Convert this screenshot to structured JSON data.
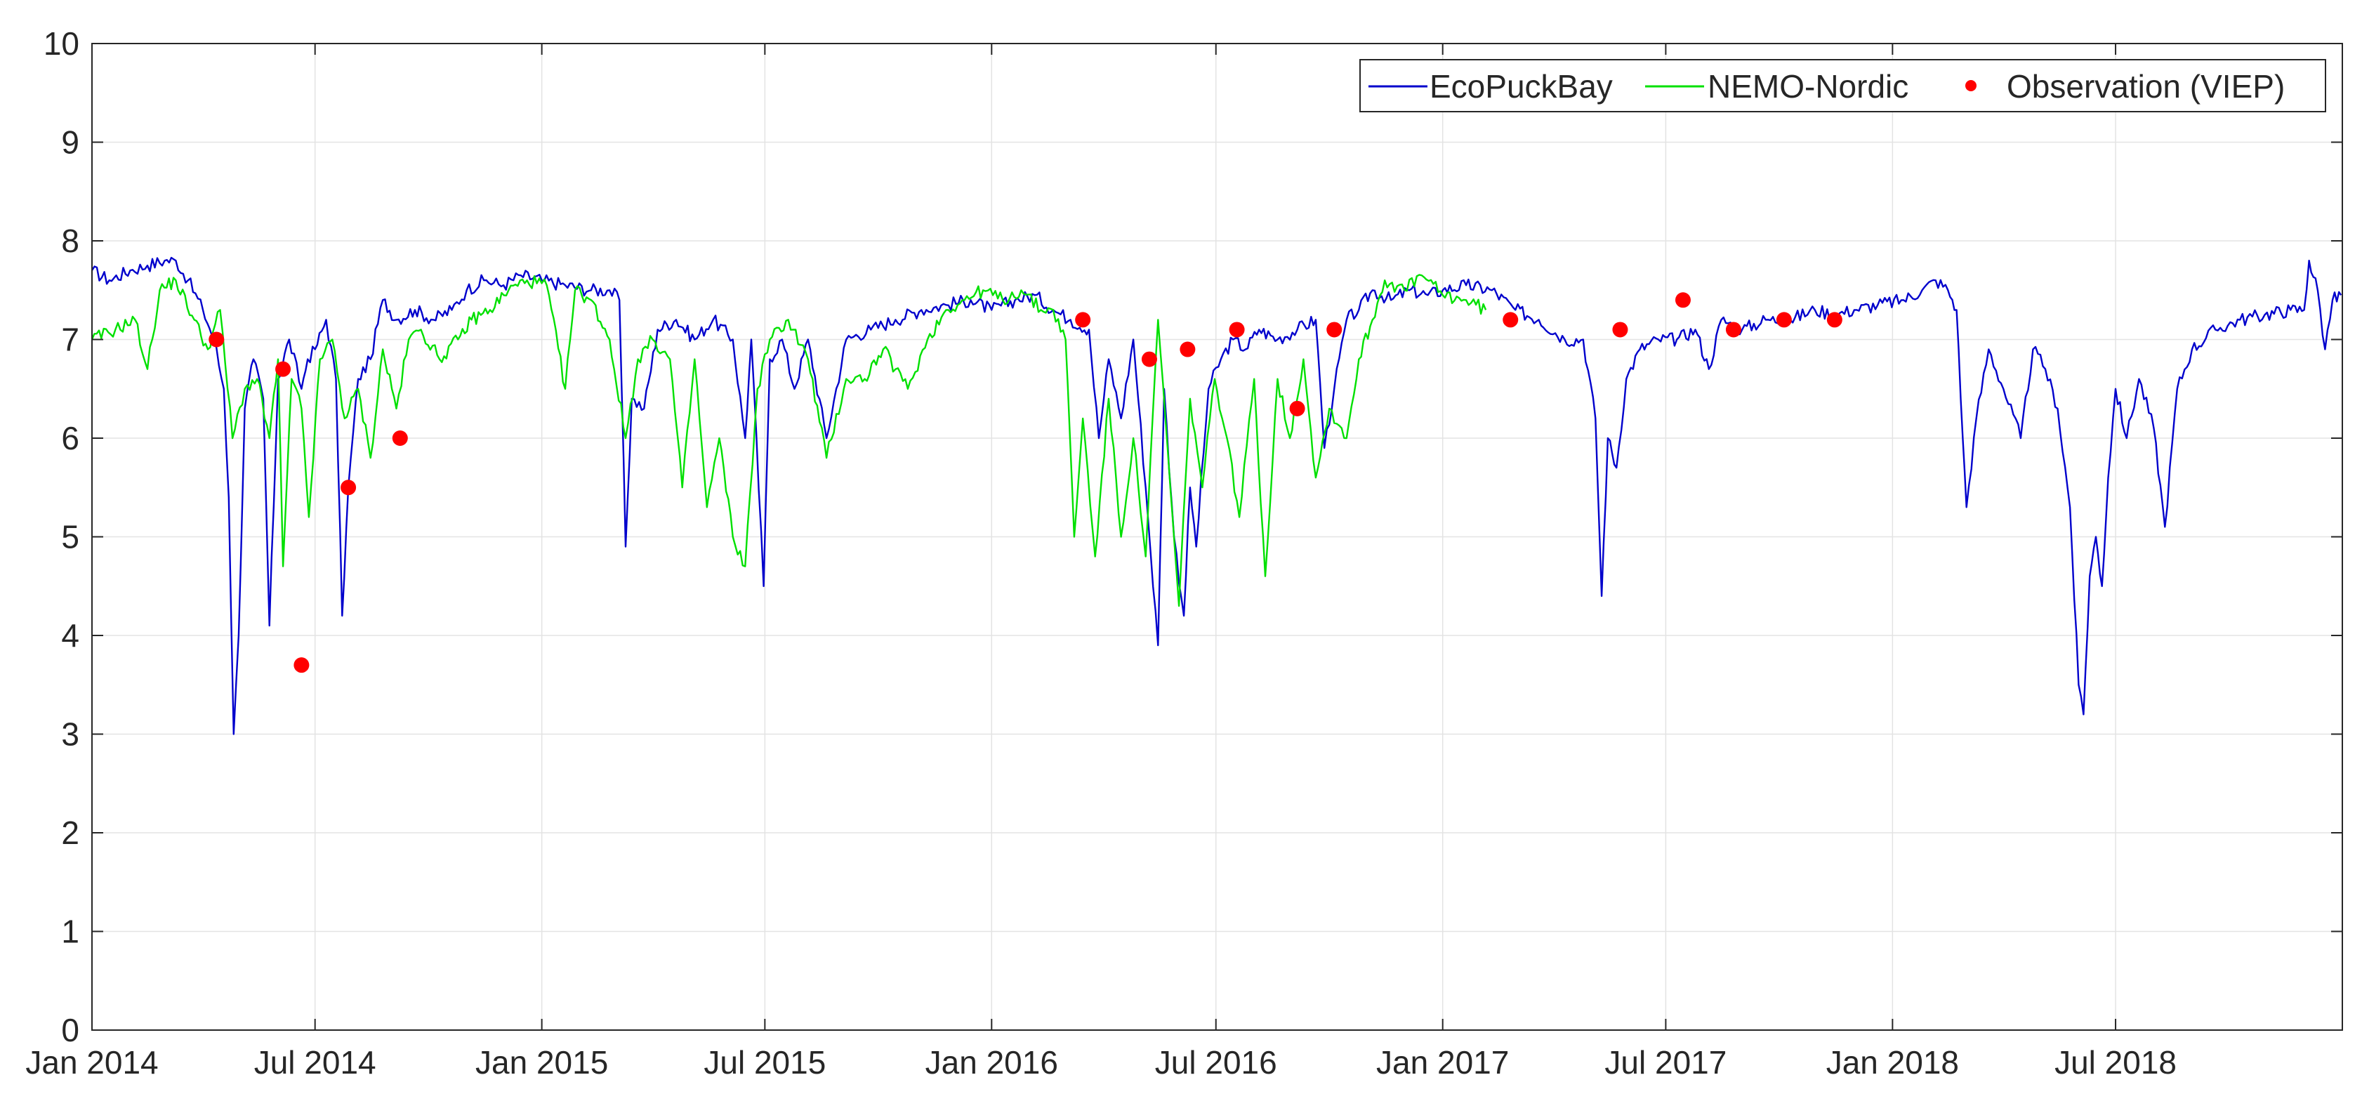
{
  "chart_data": {
    "type": "line",
    "title": "",
    "xlabel": "",
    "ylabel": "",
    "xlim": [
      "2014-01-01",
      "2019-01-01"
    ],
    "ylim": [
      0,
      10
    ],
    "grid": true,
    "legend_position": "top-right",
    "x_tick_labels": [
      "Jan 2014",
      "Jul 2014",
      "Jan 2015",
      "Jul 2015",
      "Jan 2016",
      "Jul 2016",
      "Jan 2017",
      "Jul 2017",
      "Jan 2018",
      "Jul 2018"
    ],
    "x_tick_dates": [
      "2014-01-01",
      "2014-07-01",
      "2015-01-01",
      "2015-07-01",
      "2016-01-01",
      "2016-07-01",
      "2017-01-01",
      "2017-07-01",
      "2018-01-01",
      "2018-07-01"
    ],
    "y_tick_labels": [
      "0",
      "1",
      "2",
      "3",
      "4",
      "5",
      "6",
      "7",
      "8",
      "9",
      "10"
    ],
    "series": [
      {
        "name": "EcoPuckBay",
        "type": "line",
        "color": "#0000cc",
        "points": [
          [
            "2014-01-01",
            7.7
          ],
          [
            "2014-01-15",
            7.6
          ],
          [
            "2014-02-01",
            7.7
          ],
          [
            "2014-02-15",
            7.75
          ],
          [
            "2014-03-01",
            7.8
          ],
          [
            "2014-03-10",
            7.8
          ],
          [
            "2014-03-20",
            7.6
          ],
          [
            "2014-04-01",
            7.3
          ],
          [
            "2014-04-10",
            7.0
          ],
          [
            "2014-04-18",
            6.5
          ],
          [
            "2014-04-22",
            5.4
          ],
          [
            "2014-04-26",
            3.0
          ],
          [
            "2014-04-30",
            4.0
          ],
          [
            "2014-05-05",
            6.3
          ],
          [
            "2014-05-12",
            6.8
          ],
          [
            "2014-05-20",
            6.4
          ],
          [
            "2014-05-25",
            4.1
          ],
          [
            "2014-06-01",
            6.6
          ],
          [
            "2014-06-10",
            7.0
          ],
          [
            "2014-06-20",
            6.5
          ],
          [
            "2014-06-25",
            6.8
          ],
          [
            "2014-07-01",
            6.9
          ],
          [
            "2014-07-10",
            7.2
          ],
          [
            "2014-07-18",
            6.6
          ],
          [
            "2014-07-23",
            4.2
          ],
          [
            "2014-07-28",
            5.5
          ],
          [
            "2014-08-05",
            6.6
          ],
          [
            "2014-08-15",
            6.8
          ],
          [
            "2014-08-25",
            7.4
          ],
          [
            "2014-09-05",
            7.2
          ],
          [
            "2014-09-20",
            7.3
          ],
          [
            "2014-10-05",
            7.2
          ],
          [
            "2014-10-20",
            7.3
          ],
          [
            "2014-11-01",
            7.5
          ],
          [
            "2014-11-15",
            7.6
          ],
          [
            "2014-12-01",
            7.55
          ],
          [
            "2014-12-15",
            7.65
          ],
          [
            "2015-01-01",
            7.6
          ],
          [
            "2015-01-20",
            7.55
          ],
          [
            "2015-02-10",
            7.5
          ],
          [
            "2015-02-25",
            7.5
          ],
          [
            "2015-03-05",
            7.4
          ],
          [
            "2015-03-10",
            4.9
          ],
          [
            "2015-03-15",
            6.4
          ],
          [
            "2015-03-25",
            6.3
          ],
          [
            "2015-04-05",
            7.1
          ],
          [
            "2015-04-20",
            7.2
          ],
          [
            "2015-05-05",
            7.0
          ],
          [
            "2015-05-20",
            7.2
          ],
          [
            "2015-06-05",
            7.0
          ],
          [
            "2015-06-15",
            6.0
          ],
          [
            "2015-06-20",
            7.0
          ],
          [
            "2015-06-30",
            4.5
          ],
          [
            "2015-07-05",
            6.8
          ],
          [
            "2015-07-15",
            7.0
          ],
          [
            "2015-07-25",
            6.5
          ],
          [
            "2015-08-05",
            7.0
          ],
          [
            "2015-08-20",
            6.0
          ],
          [
            "2015-09-05",
            7.0
          ],
          [
            "2015-09-25",
            7.1
          ],
          [
            "2015-10-15",
            7.2
          ],
          [
            "2015-11-05",
            7.3
          ],
          [
            "2015-11-25",
            7.35
          ],
          [
            "2015-12-15",
            7.4
          ],
          [
            "2016-01-01",
            7.3
          ],
          [
            "2016-01-20",
            7.4
          ],
          [
            "2016-02-05",
            7.45
          ],
          [
            "2016-02-20",
            7.3
          ],
          [
            "2016-03-05",
            7.2
          ],
          [
            "2016-03-20",
            7.1
          ],
          [
            "2016-03-28",
            6.0
          ],
          [
            "2016-04-05",
            6.8
          ],
          [
            "2016-04-15",
            6.2
          ],
          [
            "2016-04-25",
            7.0
          ],
          [
            "2016-05-05",
            5.5
          ],
          [
            "2016-05-15",
            3.9
          ],
          [
            "2016-05-20",
            6.5
          ],
          [
            "2016-05-28",
            5.0
          ],
          [
            "2016-06-05",
            4.2
          ],
          [
            "2016-06-10",
            5.5
          ],
          [
            "2016-06-15",
            4.9
          ],
          [
            "2016-06-25",
            6.5
          ],
          [
            "2016-07-05",
            6.8
          ],
          [
            "2016-07-15",
            7.0
          ],
          [
            "2016-07-25",
            6.9
          ],
          [
            "2016-08-05",
            7.1
          ],
          [
            "2016-08-20",
            7.0
          ],
          [
            "2016-09-05",
            7.1
          ],
          [
            "2016-09-20",
            7.2
          ],
          [
            "2016-09-27",
            5.9
          ],
          [
            "2016-10-05",
            6.5
          ],
          [
            "2016-10-15",
            7.2
          ],
          [
            "2016-10-25",
            7.3
          ],
          [
            "2016-11-05",
            7.5
          ],
          [
            "2016-11-20",
            7.4
          ],
          [
            "2016-12-05",
            7.5
          ],
          [
            "2016-12-20",
            7.45
          ],
          [
            "2017-01-01",
            7.5
          ],
          [
            "2017-01-20",
            7.55
          ],
          [
            "2017-02-10",
            7.5
          ],
          [
            "2017-03-01",
            7.3
          ],
          [
            "2017-03-20",
            7.2
          ],
          [
            "2017-04-10",
            7.0
          ],
          [
            "2017-04-25",
            7.0
          ],
          [
            "2017-05-05",
            6.2
          ],
          [
            "2017-05-10",
            4.4
          ],
          [
            "2017-05-15",
            6.0
          ],
          [
            "2017-05-22",
            5.7
          ],
          [
            "2017-05-30",
            6.6
          ],
          [
            "2017-06-10",
            6.9
          ],
          [
            "2017-06-25",
            7.0
          ],
          [
            "2017-07-10",
            7.0
          ],
          [
            "2017-07-25",
            7.1
          ],
          [
            "2017-08-05",
            6.7
          ],
          [
            "2017-08-15",
            7.2
          ],
          [
            "2017-09-01",
            7.1
          ],
          [
            "2017-09-20",
            7.2
          ],
          [
            "2017-10-10",
            7.2
          ],
          [
            "2017-10-30",
            7.3
          ],
          [
            "2017-11-15",
            7.25
          ],
          [
            "2017-12-01",
            7.3
          ],
          [
            "2017-12-20",
            7.35
          ],
          [
            "2018-01-10",
            7.4
          ],
          [
            "2018-01-25",
            7.5
          ],
          [
            "2018-02-05",
            7.6
          ],
          [
            "2018-02-15",
            7.5
          ],
          [
            "2018-02-22",
            7.3
          ],
          [
            "2018-02-27",
            6.0
          ],
          [
            "2018-03-02",
            5.3
          ],
          [
            "2018-03-10",
            6.2
          ],
          [
            "2018-03-20",
            6.9
          ],
          [
            "2018-04-01",
            6.5
          ],
          [
            "2018-04-15",
            6.0
          ],
          [
            "2018-04-25",
            6.9
          ],
          [
            "2018-05-05",
            6.7
          ],
          [
            "2018-05-15",
            6.3
          ],
          [
            "2018-05-25",
            5.3
          ],
          [
            "2018-06-01",
            3.5
          ],
          [
            "2018-06-05",
            3.2
          ],
          [
            "2018-06-10",
            4.6
          ],
          [
            "2018-06-15",
            5.0
          ],
          [
            "2018-06-20",
            4.5
          ],
          [
            "2018-06-25",
            5.6
          ],
          [
            "2018-07-01",
            6.5
          ],
          [
            "2018-07-10",
            6.0
          ],
          [
            "2018-07-20",
            6.6
          ],
          [
            "2018-08-01",
            6.1
          ],
          [
            "2018-08-10",
            5.1
          ],
          [
            "2018-08-20",
            6.5
          ],
          [
            "2018-09-01",
            6.9
          ],
          [
            "2018-09-20",
            7.1
          ],
          [
            "2018-10-10",
            7.2
          ],
          [
            "2018-10-30",
            7.25
          ],
          [
            "2018-11-20",
            7.3
          ],
          [
            "2018-12-01",
            7.3
          ],
          [
            "2018-12-05",
            7.8
          ],
          [
            "2018-12-12",
            7.5
          ],
          [
            "2018-12-18",
            6.9
          ],
          [
            "2018-12-24",
            7.4
          ],
          [
            "2018-12-31",
            7.45
          ]
        ]
      },
      {
        "name": "NEMO-Nordic",
        "type": "line",
        "color": "#00e000",
        "points": [
          [
            "2014-01-01",
            7.0
          ],
          [
            "2014-01-20",
            7.1
          ],
          [
            "2014-02-05",
            7.2
          ],
          [
            "2014-02-15",
            6.7
          ],
          [
            "2014-02-25",
            7.5
          ],
          [
            "2014-03-10",
            7.6
          ],
          [
            "2014-03-25",
            7.2
          ],
          [
            "2014-04-05",
            6.9
          ],
          [
            "2014-04-15",
            7.3
          ],
          [
            "2014-04-25",
            6.0
          ],
          [
            "2014-05-05",
            6.5
          ],
          [
            "2014-05-15",
            6.6
          ],
          [
            "2014-05-25",
            6.0
          ],
          [
            "2014-06-01",
            6.8
          ],
          [
            "2014-06-05",
            4.7
          ],
          [
            "2014-06-12",
            6.6
          ],
          [
            "2014-06-20",
            6.3
          ],
          [
            "2014-06-26",
            5.2
          ],
          [
            "2014-07-05",
            6.8
          ],
          [
            "2014-07-15",
            7.0
          ],
          [
            "2014-07-25",
            6.2
          ],
          [
            "2014-08-05",
            6.5
          ],
          [
            "2014-08-15",
            5.8
          ],
          [
            "2014-08-25",
            6.9
          ],
          [
            "2014-09-05",
            6.3
          ],
          [
            "2014-09-15",
            7.0
          ],
          [
            "2014-09-25",
            7.1
          ],
          [
            "2014-10-10",
            6.8
          ],
          [
            "2014-10-25",
            7.0
          ],
          [
            "2014-11-05",
            7.2
          ],
          [
            "2014-11-20",
            7.3
          ],
          [
            "2014-12-05",
            7.5
          ],
          [
            "2014-12-20",
            7.6
          ],
          [
            "2015-01-05",
            7.55
          ],
          [
            "2015-01-20",
            6.5
          ],
          [
            "2015-01-28",
            7.5
          ],
          [
            "2015-02-10",
            7.4
          ],
          [
            "2015-02-25",
            7.0
          ],
          [
            "2015-03-10",
            6.0
          ],
          [
            "2015-03-20",
            6.8
          ],
          [
            "2015-04-01",
            7.0
          ],
          [
            "2015-04-15",
            6.8
          ],
          [
            "2015-04-25",
            5.5
          ],
          [
            "2015-05-05",
            6.8
          ],
          [
            "2015-05-15",
            5.3
          ],
          [
            "2015-05-25",
            6.0
          ],
          [
            "2015-06-05",
            5.0
          ],
          [
            "2015-06-15",
            4.7
          ],
          [
            "2015-06-25",
            6.5
          ],
          [
            "2015-07-05",
            7.0
          ],
          [
            "2015-07-20",
            7.2
          ],
          [
            "2015-08-05",
            6.8
          ],
          [
            "2015-08-20",
            5.8
          ],
          [
            "2015-09-05",
            6.6
          ],
          [
            "2015-09-20",
            6.6
          ],
          [
            "2015-10-05",
            6.9
          ],
          [
            "2015-10-25",
            6.5
          ],
          [
            "2015-11-10",
            7.0
          ],
          [
            "2015-11-25",
            7.3
          ],
          [
            "2015-12-10",
            7.4
          ],
          [
            "2015-12-25",
            7.5
          ],
          [
            "2016-01-10",
            7.4
          ],
          [
            "2016-01-25",
            7.5
          ],
          [
            "2016-02-10",
            7.3
          ],
          [
            "2016-02-20",
            7.3
          ],
          [
            "2016-03-01",
            7.0
          ],
          [
            "2016-03-08",
            5.0
          ],
          [
            "2016-03-15",
            6.2
          ],
          [
            "2016-03-25",
            4.8
          ],
          [
            "2016-04-05",
            6.4
          ],
          [
            "2016-04-15",
            5.0
          ],
          [
            "2016-04-25",
            6.0
          ],
          [
            "2016-05-05",
            4.8
          ],
          [
            "2016-05-15",
            7.2
          ],
          [
            "2016-05-25",
            5.5
          ],
          [
            "2016-06-01",
            4.3
          ],
          [
            "2016-06-10",
            6.4
          ],
          [
            "2016-06-20",
            5.5
          ],
          [
            "2016-06-30",
            6.6
          ],
          [
            "2016-07-10",
            6.0
          ],
          [
            "2016-07-20",
            5.2
          ],
          [
            "2016-08-01",
            6.6
          ],
          [
            "2016-08-10",
            4.6
          ],
          [
            "2016-08-20",
            6.6
          ],
          [
            "2016-08-30",
            6.0
          ],
          [
            "2016-09-10",
            6.8
          ],
          [
            "2016-09-20",
            5.6
          ],
          [
            "2016-10-01",
            6.3
          ],
          [
            "2016-10-15",
            6.0
          ],
          [
            "2016-10-25",
            6.8
          ],
          [
            "2016-11-05",
            7.2
          ],
          [
            "2016-11-15",
            7.6
          ],
          [
            "2016-12-01",
            7.5
          ],
          [
            "2016-12-15",
            7.65
          ],
          [
            "2017-01-01",
            7.45
          ],
          [
            "2017-01-20",
            7.4
          ],
          [
            "2017-02-05",
            7.3
          ]
        ]
      },
      {
        "name": "Observation (VIEP)",
        "type": "scatter",
        "color": "#ff0000",
        "points": [
          [
            "2014-04-12",
            7.0
          ],
          [
            "2014-06-05",
            6.7
          ],
          [
            "2014-06-20",
            3.7
          ],
          [
            "2014-07-28",
            5.5
          ],
          [
            "2014-09-08",
            6.0
          ],
          [
            "2016-03-15",
            7.2
          ],
          [
            "2016-05-08",
            6.8
          ],
          [
            "2016-06-08",
            6.9
          ],
          [
            "2016-07-18",
            7.1
          ],
          [
            "2016-09-05",
            6.3
          ],
          [
            "2016-10-05",
            7.1
          ],
          [
            "2017-02-25",
            7.2
          ],
          [
            "2017-05-25",
            7.1
          ],
          [
            "2017-07-15",
            7.4
          ],
          [
            "2017-08-25",
            7.1
          ],
          [
            "2017-10-05",
            7.2
          ],
          [
            "2017-11-15",
            7.2
          ]
        ]
      }
    ]
  }
}
